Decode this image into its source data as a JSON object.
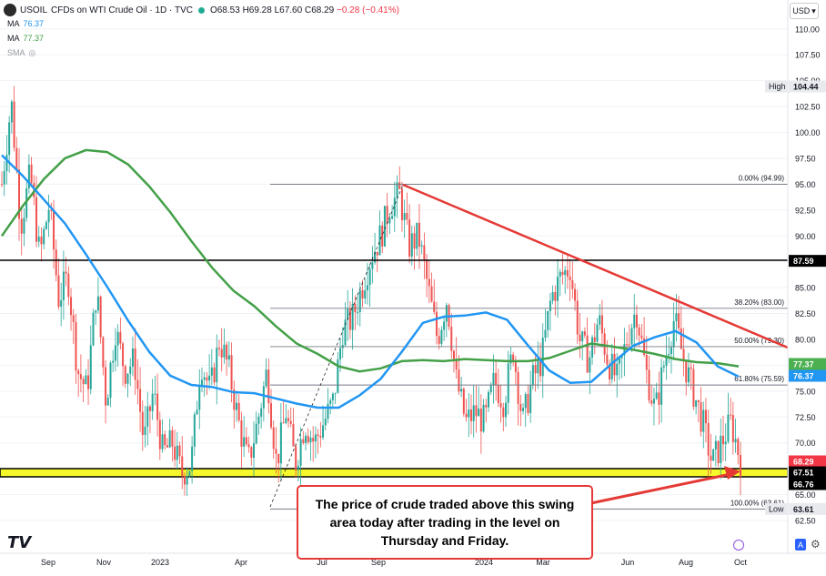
{
  "header": {
    "symbol": "USOIL",
    "title": "CFDs on WTI Crude Oil · 1D · TVC",
    "open": "O68.53",
    "high": "H69.28",
    "low": "L67.60",
    "close": "C68.29",
    "change": "−0.28 (−0.41%)",
    "currency": "USD"
  },
  "indicators": [
    {
      "label": "MA",
      "value": "76.37",
      "color": "#2196f3"
    },
    {
      "label": "MA",
      "value": "77.37",
      "color": "#4caf50"
    },
    {
      "label": "SMA",
      "value": "",
      "color": "#9598a1"
    }
  ],
  "callout": {
    "text": "The price of crude traded above this swing area today after trading in the level on Thursday and Friday."
  },
  "toolbar": {
    "auto_label": "A"
  },
  "chart_data": {
    "type": "candlestick",
    "x_ticks": [
      "Sep",
      "Nov",
      "2023",
      "Apr",
      "Jul",
      "Sep",
      "2024",
      "Mar",
      "Jun",
      "Aug",
      "Oct"
    ],
    "y_ticks": [
      "110.00",
      "107.50",
      "105.00",
      "102.50",
      "100.00",
      "97.50",
      "95.00",
      "92.50",
      "90.00",
      "87.50",
      "85.00",
      "82.50",
      "80.00",
      "77.50",
      "75.00",
      "72.50",
      "70.00",
      "67.50",
      "65.00",
      "62.50"
    ],
    "ylim": [
      61.0,
      113.0
    ],
    "last_price": 68.29,
    "ma_values": {
      "blue": 76.37,
      "green": 77.37
    },
    "price_labels": [
      {
        "text": "104.44",
        "value": 104.44,
        "bg": "#e8eaee",
        "fg": "#131722",
        "tag": "High"
      },
      {
        "text": "87.59",
        "value": 87.59,
        "bg": "#000000",
        "fg": "#ffffff"
      },
      {
        "text": "77.37",
        "value": 77.37,
        "bg": "#4caf50",
        "fg": "#ffffff"
      },
      {
        "text": "76.37",
        "value": 76.37,
        "bg": "#2196f3",
        "fg": "#ffffff"
      },
      {
        "text": "68.29",
        "value": 68.29,
        "bg": "#f23645",
        "fg": "#ffffff"
      },
      {
        "text": "67.51",
        "value": 67.51,
        "bg": "#000000",
        "fg": "#ffffff"
      },
      {
        "text": "66.76",
        "value": 66.76,
        "bg": "#000000",
        "fg": "#ffffff"
      },
      {
        "text": "63.61",
        "value": 63.61,
        "bg": "#e8eaee",
        "fg": "#131722",
        "tag": "Low"
      }
    ],
    "fib_levels": [
      {
        "label": "0.00% (94.99)",
        "value": 94.99
      },
      {
        "label": "38.20% (83.00)",
        "value": 83.0
      },
      {
        "label": "50.00% (79.30)",
        "value": 79.3
      },
      {
        "label": "61.80% (75.59)",
        "value": 75.59
      },
      {
        "label": "100.00% (63.61)",
        "value": 63.61
      }
    ],
    "horizontal_line": 87.59,
    "swing_zone": [
      66.76,
      67.51
    ],
    "trend_line": [
      {
        "date": "Sep 2023",
        "y": 94.99
      },
      {
        "date": "Oct 2024",
        "y": 79.3
      }
    ],
    "ma_blue": [
      97.8,
      95.8,
      93.5,
      91.2,
      88.2,
      85.1,
      81.8,
      78.8,
      76.5,
      75.6,
      75.4,
      74.9,
      74.8,
      74.3,
      73.8,
      73.4,
      73.4,
      74.6,
      76.2,
      78.8,
      81.6,
      82.2,
      82.3,
      82.6,
      81.9,
      79.4,
      77.0,
      75.8,
      75.9,
      77.7,
      79.4,
      80.2,
      80.8,
      79.7,
      77.4,
      76.4
    ],
    "ma_green": [
      90.0,
      92.9,
      95.5,
      97.5,
      98.3,
      98.1,
      96.9,
      94.8,
      92.3,
      89.5,
      86.9,
      84.7,
      83.2,
      81.3,
      79.6,
      78.6,
      77.4,
      76.9,
      77.2,
      77.9,
      78.0,
      77.9,
      78.1,
      78.0,
      77.9,
      77.9,
      78.2,
      78.9,
      79.6,
      79.3,
      79.0,
      78.6,
      78.1,
      77.8,
      77.7,
      77.4
    ],
    "price_path": [
      95,
      103,
      91,
      96,
      88,
      93,
      84,
      86,
      77,
      75,
      85,
      74,
      81,
      77,
      78,
      70,
      75,
      69,
      70,
      67,
      68,
      78,
      75,
      80,
      77,
      72,
      68,
      72,
      77,
      68,
      73,
      68,
      72,
      70,
      72,
      74,
      81,
      82,
      85,
      88,
      90,
      93,
      94,
      89,
      90,
      85,
      80,
      84,
      76,
      72,
      73,
      72,
      76,
      74,
      79,
      72,
      76,
      78,
      84,
      86,
      87,
      80,
      78,
      82,
      78,
      76,
      80,
      83,
      77,
      73,
      78,
      82,
      78,
      75,
      72,
      68,
      70,
      72,
      68.3
    ]
  }
}
